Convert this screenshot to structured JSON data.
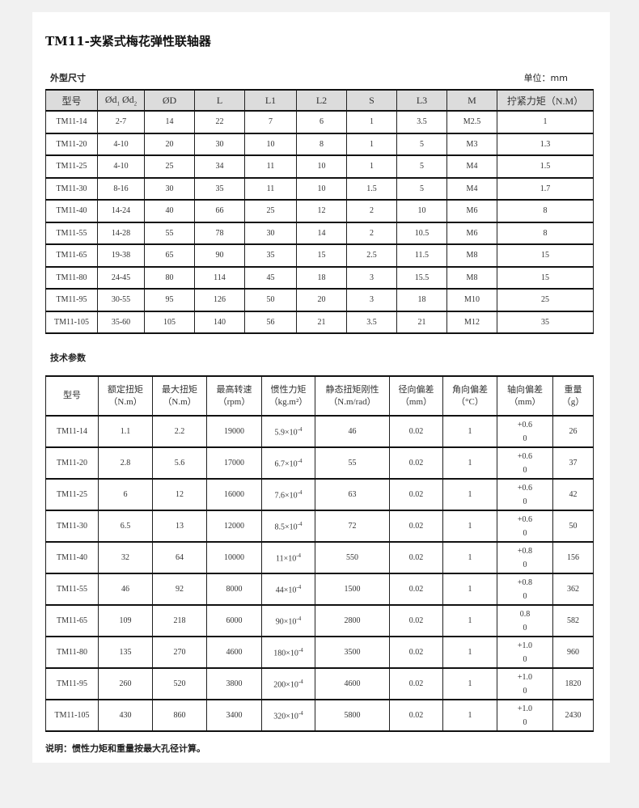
{
  "title": "TM11-夹紧式梅花弹性联轴器",
  "dimensions": {
    "section_title": "外型尺寸",
    "unit": "单位：mm",
    "headers": [
      "型号",
      "Ød1 Ød2",
      "ØD",
      "L",
      "L1",
      "L2",
      "S",
      "L3",
      "M",
      "拧紧力矩（N.M）"
    ],
    "rows": [
      [
        "TM11-14",
        "2-7",
        "14",
        "22",
        "7",
        "6",
        "1",
        "3.5",
        "M2.5",
        "1"
      ],
      [
        "TM11-20",
        "4-10",
        "20",
        "30",
        "10",
        "8",
        "1",
        "5",
        "M3",
        "1.3"
      ],
      [
        "TM11-25",
        "4-10",
        "25",
        "34",
        "11",
        "10",
        "1",
        "5",
        "M4",
        "1.5"
      ],
      [
        "TM11-30",
        "8-16",
        "30",
        "35",
        "11",
        "10",
        "1.5",
        "5",
        "M4",
        "1.7"
      ],
      [
        "TM11-40",
        "14-24",
        "40",
        "66",
        "25",
        "12",
        "2",
        "10",
        "M6",
        "8"
      ],
      [
        "TM11-55",
        "14-28",
        "55",
        "78",
        "30",
        "14",
        "2",
        "10.5",
        "M6",
        "8"
      ],
      [
        "TM11-65",
        "19-38",
        "65",
        "90",
        "35",
        "15",
        "2.5",
        "11.5",
        "M8",
        "15"
      ],
      [
        "TM11-80",
        "24-45",
        "80",
        "114",
        "45",
        "18",
        "3",
        "15.5",
        "M8",
        "15"
      ],
      [
        "TM11-95",
        "30-55",
        "95",
        "126",
        "50",
        "20",
        "3",
        "18",
        "M10",
        "25"
      ],
      [
        "TM11-105",
        "35-60",
        "105",
        "140",
        "56",
        "21",
        "3.5",
        "21",
        "M12",
        "35"
      ]
    ]
  },
  "technical": {
    "section_title": "技术参数",
    "headers": [
      {
        "name": "型号",
        "unit": ""
      },
      {
        "name": "额定扭矩",
        "unit": "（N.m）"
      },
      {
        "name": "最大扭矩",
        "unit": "（N.m）"
      },
      {
        "name": "最高转速",
        "unit": "（rpm）"
      },
      {
        "name": "惯性力矩",
        "unit": "（kg.m²）"
      },
      {
        "name": "静态扭矩刚性",
        "unit": "（N.m/rad）"
      },
      {
        "name": "径向偏差",
        "unit": "（mm）"
      },
      {
        "name": "角向偏差",
        "unit": "（°C）"
      },
      {
        "name": "轴向偏差",
        "unit": "（mm）"
      },
      {
        "name": "重量",
        "unit": "（g）"
      }
    ],
    "inertia_exponent": "-4",
    "rows": [
      [
        "TM11-14",
        "1.1",
        "2.2",
        "19000",
        "5.9×10",
        "46",
        "0.02",
        "1",
        "+0.6",
        "0",
        "26"
      ],
      [
        "TM11-20",
        "2.8",
        "5.6",
        "17000",
        "6.7×10",
        "55",
        "0.02",
        "1",
        "+0.6",
        "0",
        "37"
      ],
      [
        "TM11-25",
        "6",
        "12",
        "16000",
        "7.6×10",
        "63",
        "0.02",
        "1",
        "+0.6",
        "0",
        "42"
      ],
      [
        "TM11-30",
        "6.5",
        "13",
        "12000",
        "8.5×10",
        "72",
        "0.02",
        "1",
        "+0.6",
        "0",
        "50"
      ],
      [
        "TM11-40",
        "32",
        "64",
        "10000",
        "11×10",
        "550",
        "0.02",
        "1",
        "+0.8",
        "0",
        "156"
      ],
      [
        "TM11-55",
        "46",
        "92",
        "8000",
        "44×10",
        "1500",
        "0.02",
        "1",
        "+0.8",
        "0",
        "362"
      ],
      [
        "TM11-65",
        "109",
        "218",
        "6000",
        "90×10",
        "2800",
        "0.02",
        "1",
        "0.8",
        "0",
        "582"
      ],
      [
        "TM11-80",
        "135",
        "270",
        "4600",
        "180×10",
        "3500",
        "0.02",
        "1",
        "+1.0",
        "0",
        "960"
      ],
      [
        "TM11-95",
        "260",
        "520",
        "3800",
        "200×10",
        "4600",
        "0.02",
        "1",
        "+1.0",
        "0",
        "1820"
      ],
      [
        "TM11-105",
        "430",
        "860",
        "3400",
        "320×10",
        "5800",
        "0.02",
        "1",
        "+1.0",
        "0",
        "2430"
      ]
    ]
  },
  "note": "说明：惯性力矩和重量按最大孔径计算。"
}
